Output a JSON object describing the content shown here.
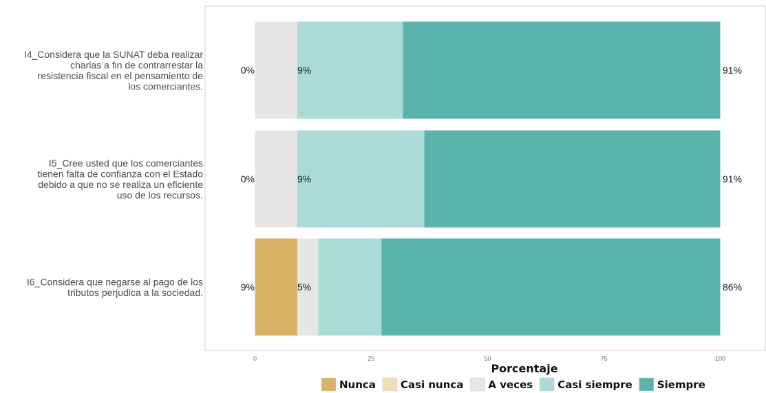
{
  "chart_data": {
    "type": "bar",
    "orientation": "horizontal",
    "stacked": true,
    "categories": [
      "I4_Considera que la SUNAT deba realizar charlas a fin de contrarrestar la resistencia fiscal en el pensamiento de los comerciantes.",
      "I5_Cree usted que los comerciantes tienen falta de confianza con el Estado debido a que no se realiza un eficiente uso de los recursos.",
      "I6_Considera que negarse al pago de los tributos perjudica a la sociedad."
    ],
    "category_lines": [
      [
        "I4_Considera que la SUNAT deba realizar",
        "charlas a fin de contrarrestar la",
        "resistencia fiscal en el pensamiento de",
        "los comerciantes."
      ],
      [
        "I5_Cree usted que los comerciantes",
        "tienen falta de confianza con el Estado",
        "debido a que no se realiza un eficiente",
        "uso de los recursos."
      ],
      [
        "I6_Considera que negarse al pago de los",
        "tributos perjudica a la sociedad."
      ]
    ],
    "series": [
      {
        "name": "Nunca",
        "color": "#d8b365",
        "values": [
          0,
          0,
          9.1
        ]
      },
      {
        "name": "Casi nunca",
        "color": "#f0dfb4",
        "values": [
          0,
          0,
          0
        ]
      },
      {
        "name": "A veces",
        "color": "#e6e6e6",
        "values": [
          9.1,
          9.1,
          4.5
        ]
      },
      {
        "name": "Casi siempre",
        "color": "#acdad6",
        "values": [
          22.7,
          27.3,
          13.6
        ]
      },
      {
        "name": "Siempre",
        "color": "#5ab4ac",
        "values": [
          68.2,
          63.6,
          72.8
        ]
      }
    ],
    "left_labels": [
      "0%",
      "0%",
      "9%"
    ],
    "middle_labels": [
      "9%",
      "9%",
      "5%"
    ],
    "right_labels": [
      "91%",
      "91%",
      "86%"
    ],
    "xlabel": "Porcentaje",
    "xticks": [
      "0",
      "25",
      "50",
      "75",
      "100"
    ],
    "xlim": [
      -10.7,
      110
    ],
    "grid": false,
    "legend_position": "bottom"
  }
}
